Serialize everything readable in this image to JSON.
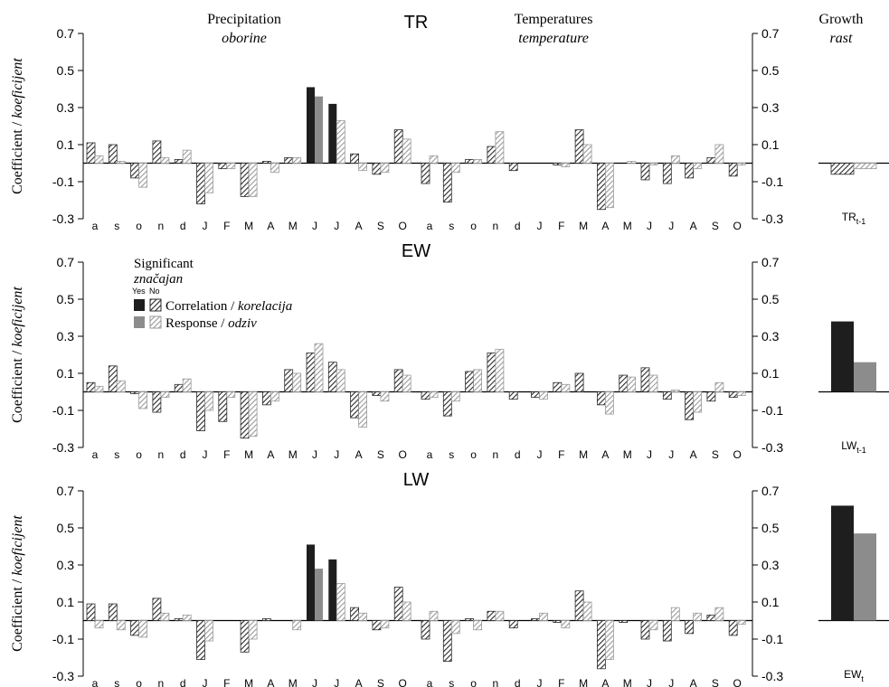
{
  "column_headers": {
    "precipitation": {
      "en": "Precipitation",
      "hr": "oborine"
    },
    "temperatures": {
      "en": "Temperatures",
      "hr": "temperature"
    },
    "growth": {
      "en": "Growth",
      "hr": "rast"
    }
  },
  "y_axis_label": {
    "en": "Coefficient / ",
    "hr": "koeficijent"
  },
  "legend": {
    "title_en": "Significant",
    "title_hr": "značajan",
    "yes": "Yes",
    "no": "No",
    "correlation_en": "Correlation / ",
    "correlation_hr": "korelacija",
    "response_en": "Response / ",
    "response_hr": "odziv",
    "colors": {
      "correlation": "#1e1e1e",
      "response": "#8c8c8c",
      "hatch_dark": "#333333",
      "hatch_light": "#9a9a9a"
    }
  },
  "chart_data": {
    "type": "bar",
    "x_labels": [
      "a",
      "s",
      "o",
      "n",
      "d",
      "J",
      "F",
      "M",
      "A",
      "M",
      "J",
      "J",
      "A",
      "S",
      "O"
    ],
    "ylim": [
      -0.3,
      0.7
    ],
    "yticks": [
      "0.7",
      "0.5",
      "0.3",
      "0.1",
      "-0.1",
      "-0.3"
    ],
    "series_names": [
      "Correlation / korelacija",
      "Response / odziv"
    ],
    "rows": [
      {
        "name": "TR",
        "growth_label_main": "TR",
        "growth_label_sub": "t-1",
        "precipitation": {
          "correlation": [
            0.11,
            0.1,
            -0.08,
            0.12,
            0.02,
            -0.22,
            -0.03,
            -0.18,
            0.01,
            0.03,
            0.41,
            0.32,
            0.05,
            -0.06,
            0.18
          ],
          "response": [
            0.04,
            0.01,
            -0.13,
            0.03,
            0.07,
            -0.16,
            -0.03,
            -0.18,
            -0.05,
            0.03,
            0.36,
            0.23,
            -0.04,
            -0.05,
            0.13
          ],
          "corr_significant": [
            false,
            false,
            false,
            false,
            false,
            false,
            false,
            false,
            false,
            false,
            true,
            true,
            false,
            false,
            false
          ],
          "resp_significant": [
            false,
            false,
            false,
            false,
            false,
            false,
            false,
            false,
            false,
            false,
            true,
            false,
            false,
            false,
            false
          ]
        },
        "temperature": {
          "correlation": [
            -0.11,
            -0.21,
            0.02,
            0.09,
            -0.04,
            0.0,
            -0.01,
            0.18,
            -0.25,
            0.0,
            -0.09,
            -0.11,
            -0.08,
            0.03,
            -0.07
          ],
          "response": [
            0.04,
            -0.05,
            0.02,
            0.17,
            0.0,
            0.0,
            -0.02,
            0.1,
            -0.24,
            0.01,
            -0.01,
            0.04,
            -0.03,
            0.1,
            -0.01
          ],
          "corr_significant": [
            false,
            false,
            false,
            false,
            false,
            false,
            false,
            false,
            false,
            false,
            false,
            false,
            false,
            false,
            false
          ],
          "resp_significant": [
            false,
            false,
            false,
            false,
            false,
            false,
            false,
            false,
            false,
            false,
            false,
            false,
            false,
            false,
            false
          ]
        },
        "growth": {
          "correlation": -0.06,
          "response": -0.03,
          "corr_significant": false,
          "resp_significant": false
        }
      },
      {
        "name": "EW",
        "growth_label_main": "LW",
        "growth_label_sub": "t-1",
        "precipitation": {
          "correlation": [
            0.05,
            0.14,
            -0.01,
            -0.11,
            0.04,
            -0.21,
            -0.16,
            -0.25,
            -0.07,
            0.12,
            0.21,
            0.16,
            -0.14,
            -0.02,
            0.12
          ],
          "response": [
            0.03,
            0.06,
            -0.09,
            -0.03,
            0.07,
            -0.1,
            -0.03,
            -0.24,
            -0.05,
            0.1,
            0.26,
            0.12,
            -0.19,
            -0.05,
            0.09
          ],
          "corr_significant": [
            false,
            false,
            false,
            false,
            false,
            false,
            false,
            false,
            false,
            false,
            false,
            false,
            false,
            false,
            false
          ],
          "resp_significant": [
            false,
            false,
            false,
            false,
            false,
            false,
            false,
            false,
            false,
            false,
            false,
            false,
            false,
            false,
            false
          ]
        },
        "temperature": {
          "correlation": [
            -0.04,
            -0.13,
            0.11,
            0.21,
            -0.04,
            -0.03,
            0.05,
            0.1,
            -0.07,
            0.09,
            0.13,
            -0.04,
            -0.15,
            -0.05,
            -0.03
          ],
          "response": [
            -0.03,
            -0.05,
            0.12,
            0.23,
            0.0,
            -0.04,
            0.04,
            0.0,
            -0.12,
            0.08,
            0.09,
            0.01,
            -0.11,
            0.05,
            -0.02
          ],
          "corr_significant": [
            false,
            false,
            false,
            false,
            false,
            false,
            false,
            false,
            false,
            false,
            false,
            false,
            false,
            false,
            false
          ],
          "resp_significant": [
            false,
            false,
            false,
            false,
            false,
            false,
            false,
            false,
            false,
            false,
            false,
            false,
            false,
            false,
            false
          ]
        },
        "growth": {
          "correlation": 0.38,
          "response": 0.16,
          "corr_significant": true,
          "resp_significant": true
        }
      },
      {
        "name": "LW",
        "growth_label_main": "EW",
        "growth_label_sub": "t",
        "precipitation": {
          "correlation": [
            0.09,
            0.09,
            -0.08,
            0.12,
            0.01,
            -0.21,
            0.0,
            -0.17,
            0.01,
            0.0,
            0.41,
            0.33,
            0.07,
            -0.05,
            0.18
          ],
          "response": [
            -0.04,
            -0.05,
            -0.09,
            0.04,
            0.03,
            -0.11,
            0.0,
            -0.1,
            0.0,
            -0.05,
            0.28,
            0.2,
            0.04,
            -0.04,
            0.1
          ],
          "corr_significant": [
            false,
            false,
            false,
            false,
            false,
            false,
            false,
            false,
            false,
            false,
            true,
            true,
            false,
            false,
            false
          ],
          "resp_significant": [
            false,
            false,
            false,
            false,
            false,
            false,
            false,
            false,
            false,
            false,
            true,
            false,
            false,
            false,
            false
          ]
        },
        "temperature": {
          "correlation": [
            -0.1,
            -0.22,
            0.01,
            0.05,
            -0.04,
            0.01,
            -0.01,
            0.16,
            -0.26,
            -0.01,
            -0.1,
            -0.11,
            -0.07,
            0.03,
            -0.08
          ],
          "response": [
            0.05,
            -0.07,
            -0.05,
            0.05,
            0.0,
            0.04,
            -0.04,
            0.1,
            -0.21,
            0.0,
            -0.05,
            0.07,
            0.04,
            0.07,
            -0.02
          ],
          "corr_significant": [
            false,
            false,
            false,
            false,
            false,
            false,
            false,
            false,
            false,
            false,
            false,
            false,
            false,
            false,
            false
          ],
          "resp_significant": [
            false,
            false,
            false,
            false,
            false,
            false,
            false,
            false,
            false,
            false,
            false,
            false,
            false,
            false,
            false
          ]
        },
        "growth": {
          "correlation": 0.62,
          "response": 0.47,
          "corr_significant": true,
          "resp_significant": true
        }
      }
    ]
  }
}
